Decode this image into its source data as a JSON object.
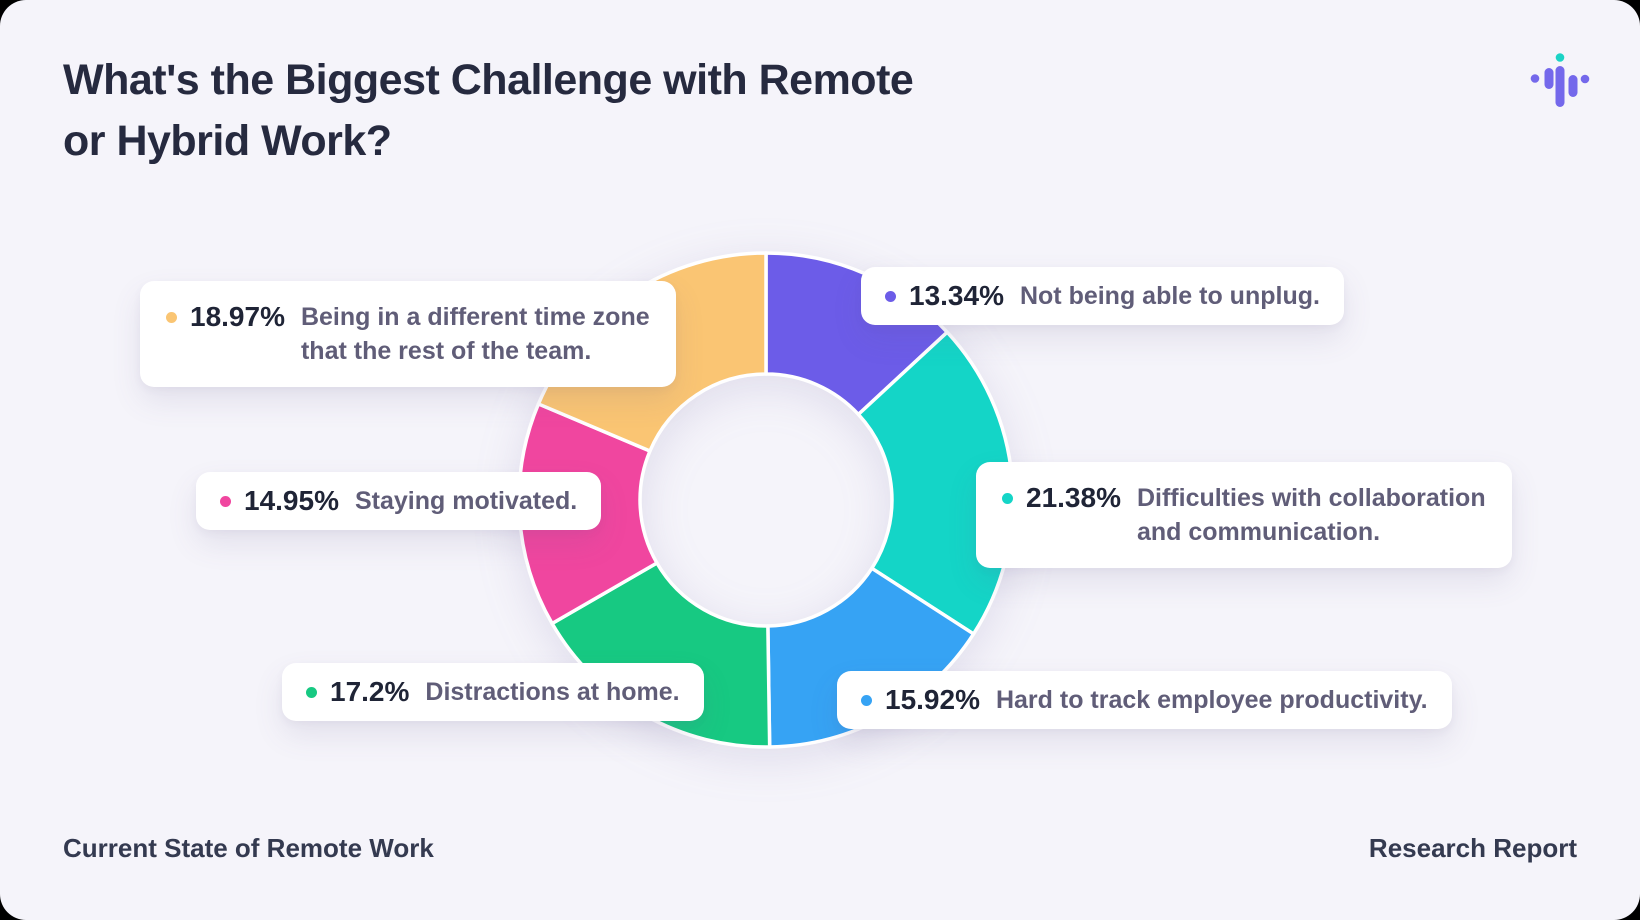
{
  "header": {
    "title_line1": "What's the Biggest Challenge with Remote",
    "title_line2": "or Hybrid Work?"
  },
  "logo": {
    "name": "pulse-soundwave-logo",
    "bar_color": "#7468EB",
    "accent_dot_color": "#1BD3C5"
  },
  "callouts": [
    {
      "key": "unplug",
      "percent": "13.34%",
      "color": "#6C5CE8",
      "lines": [
        "Not being able to unplug."
      ]
    },
    {
      "key": "collaboration",
      "percent": "21.38%",
      "color": "#14D5C7",
      "lines": [
        "Difficulties with collaboration",
        "and communication."
      ]
    },
    {
      "key": "productivity",
      "percent": "15.92%",
      "color": "#36A3F4",
      "lines": [
        "Hard to track employee productivity."
      ]
    },
    {
      "key": "distractions",
      "percent": "17.2%",
      "color": "#17C982",
      "lines": [
        "Distractions at home."
      ]
    },
    {
      "key": "motivated",
      "percent": "14.95%",
      "color": "#F0469F",
      "lines": [
        "Staying motivated."
      ]
    },
    {
      "key": "timezone",
      "percent": "18.97%",
      "color": "#FAC573",
      "lines": [
        "Being in a different time zone",
        "that the rest of the team."
      ]
    }
  ],
  "callout_line2": {
    "timezone_line2": "that the rest of the team.",
    "collaboration_line2": "and communication."
  },
  "footer": {
    "left": "Current State of Remote Work",
    "right": "Research Report"
  },
  "chart_data": {
    "type": "pie",
    "subtype": "donut",
    "title": "What's the Biggest Challenge with Remote or Hybrid Work?",
    "labels": [
      "Not being able to unplug.",
      "Difficulties with collaboration and communication.",
      "Hard to track employee productivity.",
      "Distractions at home.",
      "Staying motivated.",
      "Being in a different time zone that the rest of the team."
    ],
    "values": [
      13.34,
      21.38,
      15.92,
      17.2,
      14.95,
      18.97
    ],
    "colors": [
      "#6C5CE8",
      "#14D5C7",
      "#36A3F4",
      "#17C982",
      "#F0469F",
      "#FAC573"
    ],
    "start_angle_deg": 0,
    "direction": "clockwise",
    "inner_radius_ratio": 0.51,
    "slice_gap_color": "#FFFFFF",
    "legend_position": "callouts",
    "background": "#F5F4FA"
  }
}
